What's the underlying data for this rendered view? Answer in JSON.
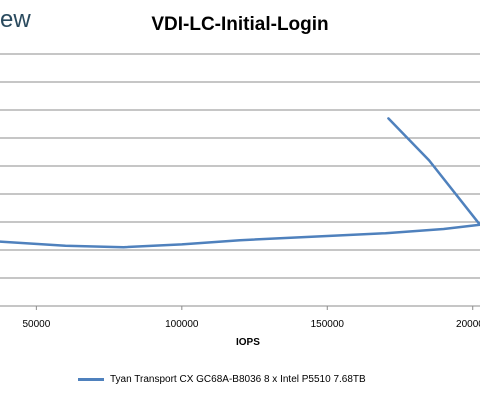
{
  "brand_fragment": "ew",
  "chart_data": {
    "type": "line",
    "title": "VDI-LC-Initial-Login",
    "xlabel": "IOPS",
    "ylabel": "",
    "x_ticks": [
      50000,
      100000,
      150000,
      200000
    ],
    "x_tick_labels": [
      "50000",
      "100000",
      "150000",
      "200000"
    ],
    "xlim": [
      37500,
      202500
    ],
    "ylim": [
      0,
      9
    ],
    "grid": {
      "horizontal": true,
      "vertical": false
    },
    "legend_position": "bottom",
    "series": [
      {
        "name": "Tyan Transport CX GC68A-B8036 8 x Intel P5510 7.68TB",
        "color": "#4f81bd",
        "x": [
          37500,
          60000,
          80000,
          100000,
          120000,
          150000,
          170000,
          190000,
          202500,
          185000,
          171000
        ],
        "y": [
          2.3,
          2.15,
          2.1,
          2.2,
          2.35,
          2.5,
          2.6,
          2.75,
          2.9,
          5.2,
          6.7
        ]
      }
    ]
  }
}
